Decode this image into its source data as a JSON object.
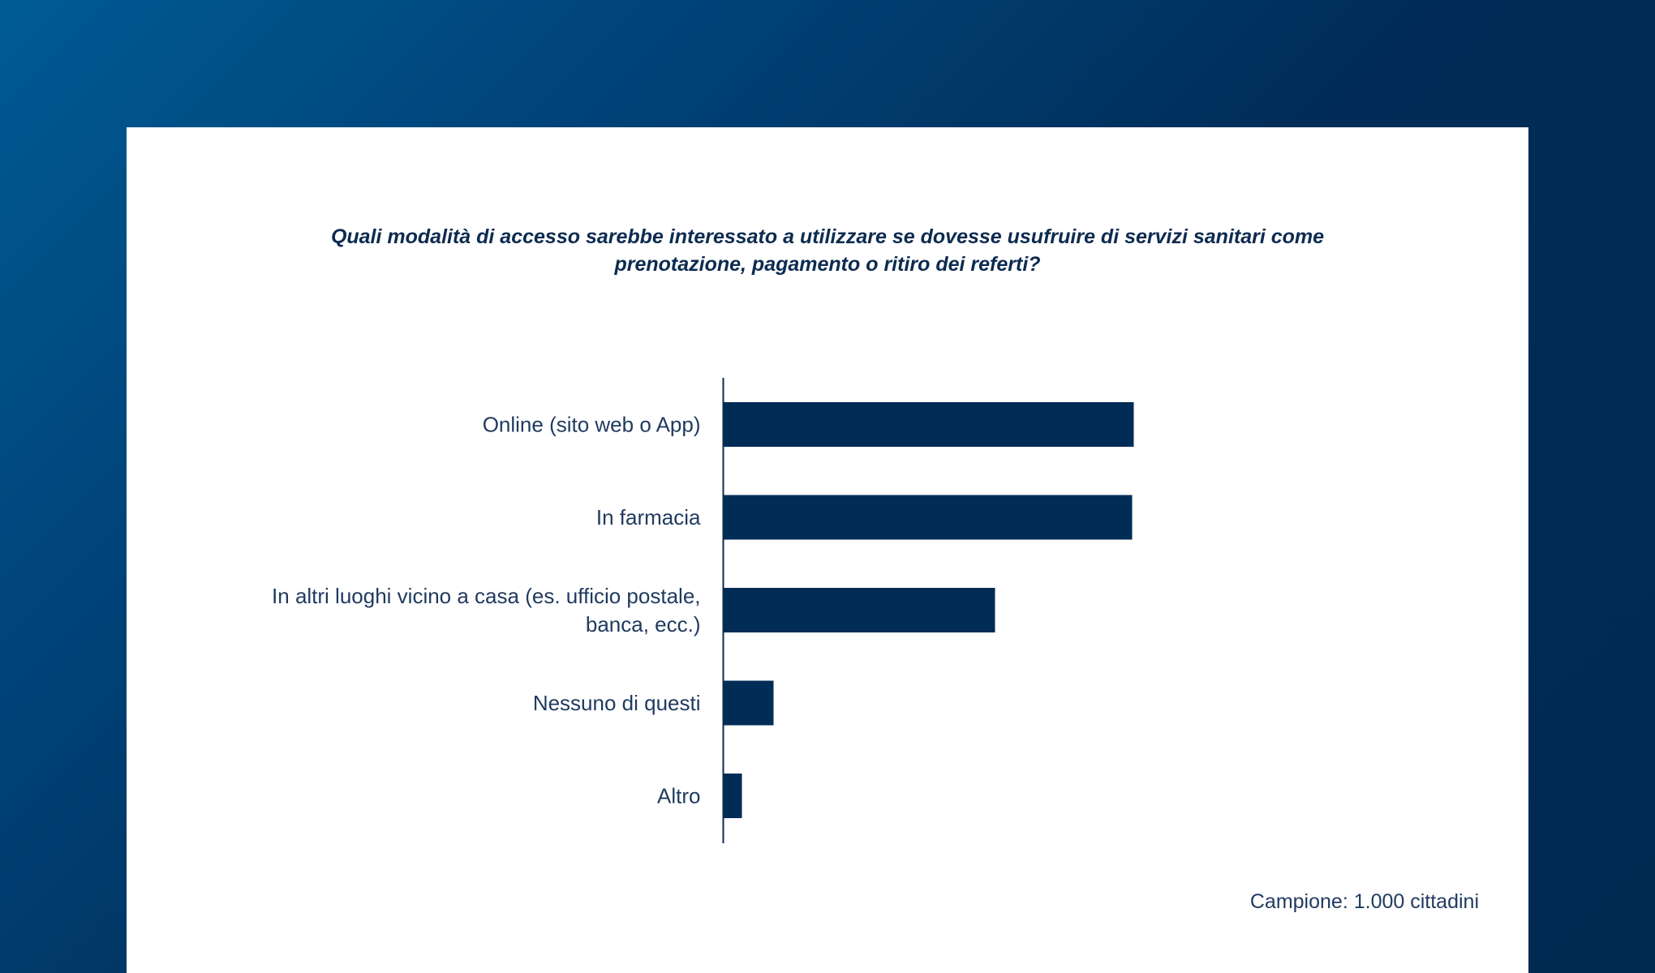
{
  "chart_data": {
    "type": "bar",
    "orientation": "horizontal",
    "title_lines": [
      "Quali modalità di accesso sarebbe interessato a utilizzare se dovesse usufruire di servizi sanitari come",
      "prenotazione, pagamento o ritiro dei referti?"
    ],
    "categories": [
      [
        "Online (sito web o App)"
      ],
      [
        "In farmacia"
      ],
      [
        "In altri luoghi vicino a casa (es. ufficio postale,",
        "banca, ecc.)"
      ],
      [
        "Nessuno di questi"
      ],
      [
        "Altro"
      ]
    ],
    "values": [
      50.5,
      50.3,
      33.4,
      6.1,
      2.2
    ],
    "xlim": [
      0,
      60
    ],
    "grid": false,
    "bar_color": "#002c55"
  },
  "footer": "Campione: 1.000 cittadini"
}
